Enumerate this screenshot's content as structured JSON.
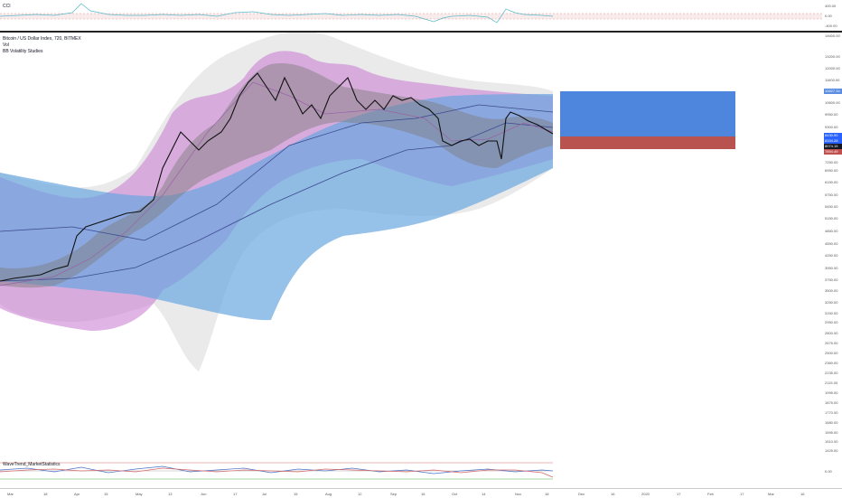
{
  "cci": {
    "label": "CCI",
    "ticks": [
      "400.00",
      "0.00",
      "-400.00"
    ]
  },
  "main": {
    "symbol_title": "Bitcoin / US Dollar Index, 720, BITMEX",
    "vol_label": "Vol",
    "study_label": "BB Volatility Studies",
    "price_ticks": [
      "14600.00",
      "13200.00",
      "12000.00",
      "11600.00",
      "10600.00",
      "9950.00",
      "9300.00",
      "8650.00",
      "7250.00",
      "6950.00",
      "6150.00",
      "5750.00",
      "5450.00",
      "5150.00",
      "4850.00",
      "4550.00",
      "4250.00",
      "3950.00",
      "3750.00",
      "3500.00",
      "3250.00",
      "3150.00",
      "2950.00",
      "2800.00",
      "2675.00",
      "2500.00",
      "2360.00",
      "2235.00",
      "2115.00",
      "1995.00",
      "1875.00",
      "1770.00",
      "1680.00",
      "1595.00",
      "1510.00",
      "1425.00",
      "1340.00"
    ],
    "price_boxes": [
      {
        "text": "10627.34",
        "color": "#5b8de0"
      },
      {
        "text": "8430.90",
        "color": "#2962ff"
      },
      {
        "text": "8334.28",
        "color": "#2962ff"
      },
      {
        "text": "8074.15",
        "color": "#131722"
      },
      {
        "text": "7894.49",
        "color": "#c0504d"
      }
    ]
  },
  "wavetrend": {
    "label": "WaveTrend_MarketStatistics",
    "ticks": [
      "0.00"
    ]
  },
  "time_axis": [
    "Mar",
    "18",
    "Apr",
    "15",
    "May",
    "13",
    "Jun",
    "17",
    "Jul",
    "15",
    "Aug",
    "12",
    "Sep",
    "16",
    "Oct",
    "14",
    "Nov",
    "18",
    "Dec",
    "16",
    "2020",
    "17",
    "Feb",
    "17",
    "Mar",
    "16"
  ],
  "colors": {
    "bb_outer": "#d8d8d8",
    "bb_purple": "#c679d2",
    "bb_core": "#7a7a7a",
    "blue_channel": "#6aa7e0",
    "target_box": "#4f86dd",
    "stop_box": "#b9534f"
  }
}
